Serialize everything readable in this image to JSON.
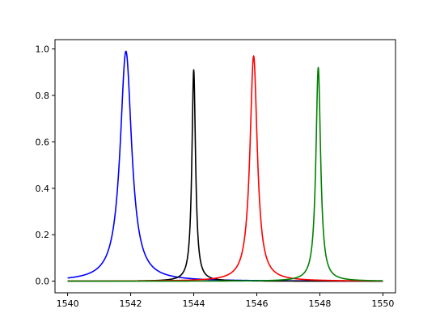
{
  "chart_data": {
    "type": "line",
    "title": "",
    "xlabel": "",
    "ylabel": "",
    "xlim": [
      1539.6,
      1550.4
    ],
    "ylim": [
      -0.05,
      1.04
    ],
    "grid": false,
    "legend": "none",
    "x_ticks": [
      1540,
      1542,
      1544,
      1546,
      1548,
      1550
    ],
    "x_tick_labels": [
      "1540",
      "1542",
      "1544",
      "1546",
      "1548",
      "1550"
    ],
    "y_ticks": [
      0.0,
      0.2,
      0.4,
      0.6,
      0.8,
      1.0
    ],
    "y_tick_labels": [
      "0.0",
      "0.2",
      "0.4",
      "0.6",
      "0.8",
      "1.0"
    ],
    "series": [
      {
        "color": "#0000ff",
        "center": 1541.85,
        "peak": 0.99,
        "width": 0.22,
        "x_range": [
          1540,
          1550
        ]
      },
      {
        "color": "#000000",
        "center": 1544.0,
        "peak": 0.91,
        "width": 0.07,
        "x_range": [
          1540,
          1550
        ]
      },
      {
        "color": "#ff0000",
        "center": 1545.9,
        "peak": 0.97,
        "width": 0.14,
        "x_range": [
          1540,
          1550
        ]
      },
      {
        "color": "#008000",
        "center": 1547.95,
        "peak": 0.92,
        "width": 0.09,
        "x_range": [
          1540,
          1550
        ]
      }
    ]
  }
}
